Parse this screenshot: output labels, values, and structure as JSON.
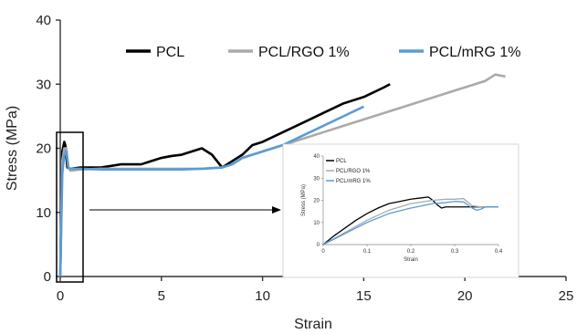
{
  "chart_data": [
    {
      "type": "line",
      "xlabel": "Strain",
      "ylabel": "Stress (MPa)",
      "xlim": [
        0,
        25
      ],
      "ylim": [
        0,
        40
      ],
      "xticks": [
        "0",
        "5",
        "10",
        "15",
        "20",
        "25"
      ],
      "yticks": [
        "0",
        "10",
        "20",
        "30",
        "40"
      ],
      "grid": false,
      "legend_position": "top",
      "series": [
        {
          "name": "PCL",
          "color": "#000000",
          "x": [
            0,
            0.1,
            0.2,
            0.25,
            0.35,
            0.5,
            1,
            2,
            3,
            4,
            4.5,
            5,
            5.5,
            6,
            6.5,
            7,
            7.5,
            8,
            8.5,
            9,
            9.5,
            10,
            11,
            12,
            13,
            14,
            15,
            16,
            16.3
          ],
          "y": [
            0,
            19.5,
            21,
            20.5,
            17,
            16.8,
            17,
            17,
            17.5,
            17.5,
            18,
            18.5,
            18.8,
            19,
            19.5,
            20,
            19,
            17,
            18,
            19,
            20.5,
            21,
            22.5,
            24,
            25.5,
            27,
            28,
            29.5,
            30
          ]
        },
        {
          "name": "PCL/RGO 1%",
          "color": "#aaaaaa",
          "x": [
            0,
            0.1,
            0.2,
            0.3,
            0.4,
            0.5,
            1,
            2,
            3,
            4,
            5,
            6,
            7,
            8,
            8.5,
            9,
            10,
            11,
            12,
            13,
            14,
            15,
            16,
            17,
            18,
            19,
            20,
            21,
            21.5,
            22
          ],
          "y": [
            0,
            18,
            20,
            20,
            17,
            16.5,
            16.7,
            16.8,
            16.8,
            16.8,
            16.8,
            16.8,
            16.8,
            17,
            17.5,
            18.5,
            19.5,
            20.5,
            21.5,
            22.5,
            23.5,
            24.5,
            25.5,
            26.5,
            27.5,
            28.5,
            29.5,
            30.5,
            31.5,
            31.2
          ]
        },
        {
          "name": "PCL/mRG 1%",
          "color": "#5b9bd5",
          "x": [
            0,
            0.1,
            0.2,
            0.3,
            0.4,
            0.5,
            1,
            2,
            3,
            4,
            5,
            6,
            7,
            8,
            8.5,
            9,
            10,
            11,
            12,
            13,
            14,
            15
          ],
          "y": [
            0,
            16,
            19,
            19.5,
            17,
            16.8,
            16.8,
            16.7,
            16.7,
            16.7,
            16.7,
            16.7,
            16.8,
            17,
            17.5,
            18.5,
            19.5,
            20.5,
            22,
            23.5,
            25,
            26.5
          ]
        }
      ]
    },
    {
      "type": "line",
      "xlabel": "Strain",
      "ylabel": "Stress (MPa)",
      "xlim": [
        0,
        0.4
      ],
      "ylim": [
        0,
        40
      ],
      "xticks": [
        "0",
        "0.1",
        "0.2",
        "0.3",
        "0.4"
      ],
      "yticks": [
        "0",
        "10",
        "20",
        "30",
        "40"
      ],
      "grid": false,
      "legend_position": "top-left",
      "series": [
        {
          "name": "PCL",
          "color": "#000000",
          "x": [
            0,
            0.025,
            0.05,
            0.075,
            0.1,
            0.125,
            0.15,
            0.175,
            0.2,
            0.22,
            0.24,
            0.25,
            0.26,
            0.27,
            0.28,
            0.3,
            0.32,
            0.35,
            0.38,
            0.4
          ],
          "y": [
            0,
            4,
            7.5,
            11,
            14,
            16.5,
            18.5,
            19.5,
            20.5,
            21,
            21.5,
            20,
            18,
            16.5,
            17,
            17,
            17,
            17,
            17,
            17
          ]
        },
        {
          "name": "PCL/RGO 1%",
          "color": "#aaaaaa",
          "x": [
            0,
            0.05,
            0.1,
            0.15,
            0.2,
            0.25,
            0.28,
            0.3,
            0.32,
            0.34,
            0.36,
            0.38,
            0.4
          ],
          "y": [
            0,
            5.5,
            11,
            15.5,
            18.5,
            20,
            20.5,
            20.5,
            20.8,
            17.5,
            17,
            17,
            17
          ]
        },
        {
          "name": "PCL/mRG 1%",
          "color": "#5b9bd5",
          "x": [
            0,
            0.05,
            0.1,
            0.15,
            0.2,
            0.25,
            0.28,
            0.3,
            0.32,
            0.34,
            0.35,
            0.36,
            0.37,
            0.38,
            0.4
          ],
          "y": [
            0,
            5,
            10,
            14,
            16.5,
            18.5,
            19,
            19.5,
            19.3,
            16.5,
            15.5,
            16,
            17,
            17,
            17
          ]
        }
      ]
    }
  ]
}
